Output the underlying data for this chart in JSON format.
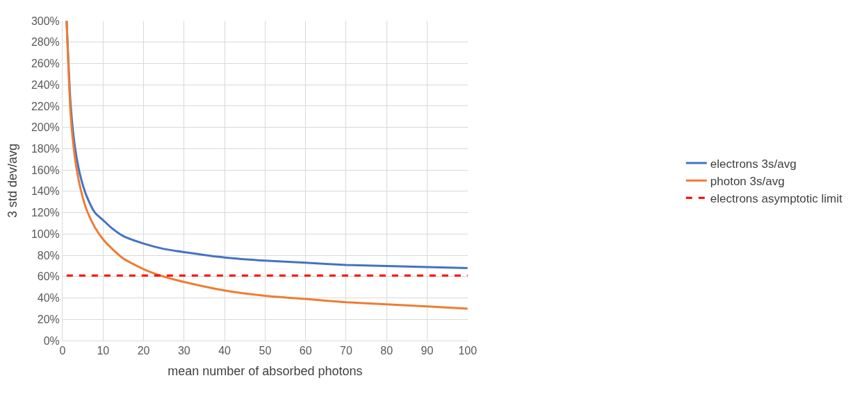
{
  "chart_data": {
    "type": "line",
    "xlabel": "mean number of absorbed photons",
    "ylabel": "3 std dev/avg",
    "xlim": [
      0,
      100
    ],
    "xticks": [
      0,
      10,
      20,
      30,
      40,
      50,
      60,
      70,
      80,
      90,
      100
    ],
    "ylim": [
      0,
      300
    ],
    "yticks": [
      {
        "value": 0,
        "label": "0%"
      },
      {
        "value": 20,
        "label": "20%"
      },
      {
        "value": 40,
        "label": "40%"
      },
      {
        "value": 60,
        "label": "60%"
      },
      {
        "value": 80,
        "label": "80%"
      },
      {
        "value": 100,
        "label": "100%"
      },
      {
        "value": 120,
        "label": "120%"
      },
      {
        "value": 140,
        "label": "140%"
      },
      {
        "value": 160,
        "label": "160%"
      },
      {
        "value": 180,
        "label": "180%"
      },
      {
        "value": 200,
        "label": "200%"
      },
      {
        "value": 220,
        "label": "220%"
      },
      {
        "value": 240,
        "label": "240%"
      },
      {
        "value": 260,
        "label": "260%"
      },
      {
        "value": 280,
        "label": "280%"
      },
      {
        "value": 300,
        "label": "300%"
      }
    ],
    "x": [
      1,
      2,
      3,
      4,
      5,
      6,
      8,
      10,
      12,
      15,
      20,
      25,
      30,
      40,
      50,
      60,
      70,
      80,
      90,
      100
    ],
    "series": [
      {
        "name": "electrons 3s/avg",
        "color": "#4472c4",
        "values": [
          300,
          221,
          183,
          161,
          146,
          135,
          120,
          113,
          106,
          98,
          91,
          86,
          83,
          78,
          75,
          73,
          71,
          70,
          69,
          68
        ]
      },
      {
        "name": "photon 3s/avg",
        "color": "#ed7d31",
        "values": [
          300,
          212,
          173,
          150,
          134,
          122,
          106,
          95,
          87,
          77,
          67,
          60,
          55,
          47,
          42,
          39,
          36,
          34,
          32,
          30
        ]
      },
      {
        "name": "electrons asymptotic limit",
        "color": "#ff0000",
        "line_style": "dashed",
        "x": [
          1,
          100
        ],
        "values": [
          61,
          61
        ]
      }
    ],
    "grid": true,
    "legend": "right",
    "marker": "none"
  }
}
